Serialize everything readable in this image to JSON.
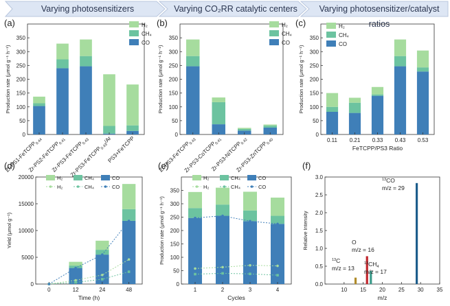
{
  "banners": [
    "Varying photosensitizers",
    "Varying CO₂RR catalytic centers",
    "Varying photosensitizer/catalyst ratios"
  ],
  "colors": {
    "CO": "#3f7fb8",
    "CH4": "#6cc3a0",
    "H2": "#a6dc9e",
    "f_13C": "#b08b2a",
    "f_O": "#c0272d",
    "f_13CH4": "#3a9a8a",
    "f_13CO": "#1e5e8c"
  },
  "chart_data": [
    {
      "id": "a",
      "panel_label": "(a)",
      "type": "bar",
      "stacked": true,
      "ylabel": "Production rate (μmol g⁻¹ h⁻¹)",
      "ylim": [
        0,
        400
      ],
      "yticks": [
        0,
        50,
        100,
        150,
        200,
        250,
        300,
        350
      ],
      "categories": [
        {
          "main": "Zr-PS1-FeTCPP",
          "sub": "0.44"
        },
        {
          "main": "Zr-PS2-FeTCPP",
          "sub": "0.41"
        },
        {
          "main": "Zr-PS3-FeTCPP",
          "sub": "0.43"
        },
        {
          "main": "Zr-PS3-FeTCPP",
          "sub": "0.43",
          "suffix": "/Ar"
        },
        {
          "main": "PS3+FeTCPP",
          "sub": ""
        }
      ],
      "series": [
        {
          "name": "CO",
          "values": [
            103,
            240,
            247,
            3,
            13
          ]
        },
        {
          "name": "CH4",
          "values": [
            10,
            32,
            37,
            28,
            20
          ]
        },
        {
          "name": "H2",
          "values": [
            24,
            57,
            60,
            187,
            148
          ]
        }
      ],
      "legend": [
        "H₂",
        "CH₄",
        "CO"
      ],
      "legend_position": "top-right"
    },
    {
      "id": "b",
      "panel_label": "(b)",
      "type": "bar",
      "stacked": true,
      "ylabel": "Production rate (μmol g⁻¹ h⁻¹)",
      "ylim": [
        0,
        400
      ],
      "yticks": [
        0,
        50,
        100,
        150,
        200,
        250,
        300,
        350
      ],
      "categories": [
        {
          "main": "Zr-PS3-FeTCPP",
          "sub": "0.43"
        },
        {
          "main": "Zr-PS3-CoTCPP",
          "sub": "0.41"
        },
        {
          "main": "Zr-PS3-NiTCPP",
          "sub": "0.42"
        },
        {
          "main": "Zr-PS3-ZnTCPP",
          "sub": "0.40"
        }
      ],
      "series": [
        {
          "name": "CO",
          "values": [
            247,
            37,
            14,
            25
          ]
        },
        {
          "name": "CH4",
          "values": [
            37,
            80,
            6,
            7
          ]
        },
        {
          "name": "H2",
          "values": [
            60,
            17,
            4,
            4
          ]
        }
      ],
      "legend": [
        "H₂",
        "CH₄",
        "CO"
      ],
      "legend_position": "top-right"
    },
    {
      "id": "c",
      "panel_label": "(c)",
      "type": "bar",
      "stacked": true,
      "ylabel": "Production rate (μmol g⁻¹ h⁻¹)",
      "xlabel": "FeTCPP/PS3 Ratio",
      "ylim": [
        0,
        400
      ],
      "yticks": [
        0,
        50,
        100,
        150,
        200,
        250,
        300,
        350
      ],
      "categories": [
        "0.11",
        "0.21",
        "0.33",
        "0.43",
        "0.53"
      ],
      "series": [
        {
          "name": "CO",
          "values": [
            82,
            78,
            140,
            247,
            228
          ]
        },
        {
          "name": "CH4",
          "values": [
            18,
            37,
            5,
            37,
            15
          ]
        },
        {
          "name": "H2",
          "values": [
            50,
            18,
            27,
            60,
            61
          ]
        }
      ],
      "legend": [
        "H₂",
        "CH₄",
        "CO"
      ],
      "legend_position": "top-left"
    },
    {
      "id": "d",
      "panel_label": "(d)",
      "type": "bar",
      "stacked": true,
      "ylabel": "Yield  (μmol g⁻¹)",
      "xlabel": "Time (h)",
      "ylim": [
        0,
        20000
      ],
      "yticks": [
        0,
        5000,
        10000,
        15000,
        20000
      ],
      "categories": [
        "0",
        "12",
        "24",
        "48"
      ],
      "series": [
        {
          "name": "CO",
          "values": [
            0,
            3000,
            5500,
            11800
          ]
        },
        {
          "name": "CH4",
          "values": [
            0,
            450,
            900,
            2200
          ]
        },
        {
          "name": "H2",
          "values": [
            0,
            700,
            1700,
            4700
          ]
        }
      ],
      "lines": [
        {
          "name": "H2",
          "values": [
            0,
            700,
            1700,
            4600
          ]
        },
        {
          "name": "CH4",
          "values": [
            0,
            300,
            900,
            2300
          ]
        },
        {
          "name": "CO",
          "values": [
            0,
            3000,
            5500,
            11800
          ]
        }
      ],
      "legend": [
        "H₂",
        "CH₄",
        "CO",
        "H₂",
        "CH₄",
        "CO"
      ]
    },
    {
      "id": "e",
      "panel_label": "(e)",
      "type": "bar",
      "stacked": true,
      "ylabel": "Production rate (μmol g⁻¹ h⁻¹)",
      "xlabel": "Cycles",
      "ylim": [
        0,
        400
      ],
      "yticks": [
        0,
        50,
        100,
        150,
        200,
        250,
        300,
        350
      ],
      "categories": [
        "1",
        "2",
        "3",
        "4"
      ],
      "series": [
        {
          "name": "CO",
          "values": [
            247,
            255,
            235,
            225
          ]
        },
        {
          "name": "CH4",
          "values": [
            37,
            42,
            40,
            30
          ]
        },
        {
          "name": "H2",
          "values": [
            60,
            63,
            70,
            68
          ]
        }
      ],
      "lines": [
        {
          "name": "H2",
          "values": [
            58,
            63,
            70,
            68
          ]
        },
        {
          "name": "CH4",
          "values": [
            37,
            40,
            38,
            33
          ]
        },
        {
          "name": "CO",
          "values": [
            247,
            255,
            235,
            225
          ]
        }
      ],
      "legend": [
        "H₂",
        "CH₄",
        "CO",
        "H₂",
        "CH₄",
        "CO"
      ]
    },
    {
      "id": "f",
      "panel_label": "(f)",
      "type": "bar",
      "ylabel": "Relative Intensity",
      "xlabel": "m/z",
      "xlim": [
        5,
        35
      ],
      "ylim": [
        0,
        3.0
      ],
      "xticks": [
        10,
        15,
        20,
        25,
        30,
        35
      ],
      "yticks": [
        0.0,
        0.5,
        1.0,
        1.5,
        2.0,
        2.5,
        3.0
      ],
      "bars": [
        {
          "x": 13,
          "value": 0.18,
          "color_key": "f_13C"
        },
        {
          "x": 16,
          "value": 0.78,
          "color_key": "f_O"
        },
        {
          "x": 17,
          "value": 0.37,
          "color_key": "f_13CH4"
        },
        {
          "x": 29,
          "value": 2.83,
          "color_key": "f_13CO"
        }
      ],
      "annotations": [
        {
          "sup": "13",
          "base": "C",
          "sub": "",
          "line2": "m/z = 13"
        },
        {
          "sup": "",
          "base": "O",
          "sub": "",
          "line2": "m/z = 16"
        },
        {
          "sup": "13",
          "base": "CH",
          "sub": "4",
          "line2": "m/z = 17"
        },
        {
          "sup": "13",
          "base": "CO",
          "sub": "",
          "line2": "m/z = 29"
        }
      ]
    }
  ]
}
